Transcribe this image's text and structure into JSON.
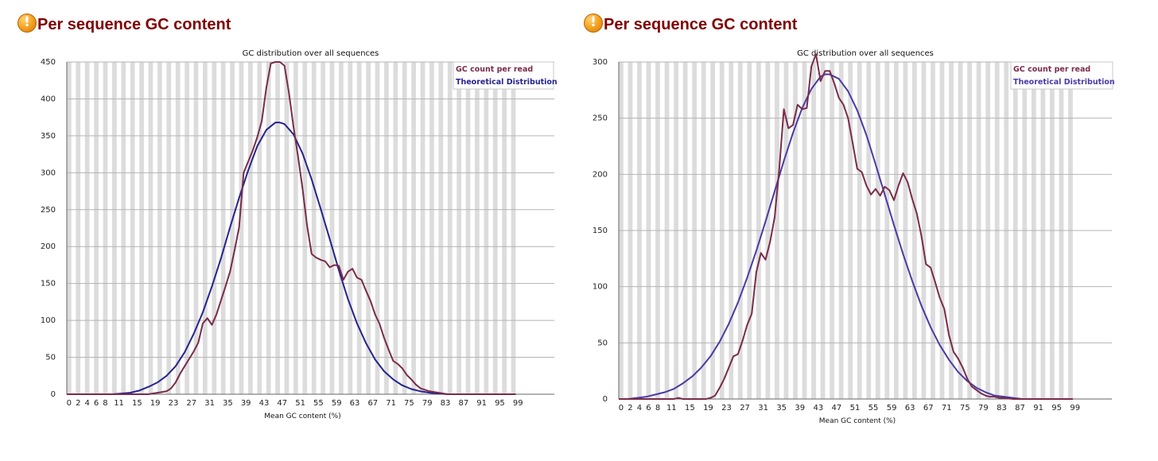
{
  "panels": [
    {
      "heading": "Per sequence GC content",
      "icon": "warning-icon",
      "chart_data": {
        "type": "line",
        "title": "GC distribution over all sequences",
        "xlabel": "Mean GC content (%)",
        "ylabel": "",
        "xlim": [
          0,
          100
        ],
        "ylim": [
          0,
          450
        ],
        "yticks": [
          0,
          50,
          100,
          150,
          200,
          250,
          300,
          350,
          400,
          450
        ],
        "xticks": [
          0,
          2,
          4,
          6,
          8,
          11,
          15,
          19,
          23,
          27,
          31,
          35,
          39,
          43,
          47,
          51,
          55,
          59,
          63,
          67,
          71,
          75,
          79,
          83,
          87,
          91,
          95,
          99
        ],
        "legend_position": "top-right",
        "grid": true,
        "series": [
          {
            "name": "GC count per read",
            "color": "#7a2b4a",
            "x": [
              0,
              2,
              4,
              6,
              8,
              10,
              12,
              14,
              16,
              18,
              20,
              21,
              22,
              23,
              24,
              25,
              26,
              27,
              28,
              29,
              30,
              31,
              32,
              33,
              34,
              35,
              36,
              37,
              38,
              39,
              40,
              41,
              42,
              43,
              44,
              45,
              46,
              47,
              48,
              49,
              50,
              51,
              52,
              53,
              54,
              55,
              56,
              57,
              58,
              59,
              60,
              61,
              62,
              63,
              64,
              65,
              66,
              67,
              68,
              69,
              70,
              71,
              72,
              73,
              74,
              75,
              76,
              77,
              78,
              79,
              80,
              82,
              84,
              86,
              88,
              90,
              92,
              95,
              99
            ],
            "y": [
              0,
              0,
              0,
              0,
              0,
              0,
              0,
              0,
              0,
              0,
              2,
              3,
              4,
              8,
              16,
              28,
              38,
              48,
              58,
              70,
              96,
              103,
              94,
              108,
              127,
              146,
              166,
              195,
              226,
              300,
              315,
              330,
              348,
              370,
              415,
              448,
              450,
              450,
              445,
              408,
              362,
              322,
              278,
              228,
              190,
              185,
              182,
              180,
              172,
              175,
              174,
              155,
              166,
              170,
              158,
              155,
              140,
              126,
              108,
              95,
              76,
              60,
              45,
              41,
              35,
              26,
              20,
              13,
              8,
              6,
              4,
              2,
              0,
              0,
              0,
              0,
              0,
              0,
              0
            ]
          },
          {
            "name": "Theoretical Distribution",
            "color": "#26238f",
            "x": [
              0,
              2,
              4,
              6,
              8,
              10,
              12,
              14,
              16,
              18,
              20,
              22,
              24,
              26,
              28,
              30,
              32,
              34,
              36,
              38,
              40,
              42,
              44,
              46,
              47,
              48,
              50,
              52,
              54,
              56,
              58,
              60,
              62,
              64,
              66,
              68,
              70,
              72,
              74,
              76,
              78,
              80,
              82,
              84,
              86,
              88,
              90,
              92,
              95,
              99
            ],
            "y": [
              0,
              0,
              0,
              0,
              0,
              0,
              1,
              2,
              5,
              10,
              16,
              25,
              38,
              57,
              82,
              111,
              146,
              184,
              226,
              266,
              303,
              336,
              358,
              368,
              368,
              366,
              352,
              326,
              291,
              251,
              210,
              168,
              129,
              96,
              69,
              47,
              31,
              20,
              12,
              7,
              4,
              2,
              1,
              0,
              0,
              0,
              0,
              0,
              0,
              0
            ]
          }
        ]
      }
    },
    {
      "heading": "Per sequence GC content",
      "icon": "warning-icon",
      "chart_data": {
        "type": "line",
        "title": "GC distribution over all sequences",
        "xlabel": "Mean GC content (%)",
        "ylabel": "",
        "xlim": [
          0,
          100
        ],
        "ylim": [
          0,
          300
        ],
        "yticks": [
          0,
          50,
          100,
          150,
          200,
          250,
          300
        ],
        "xticks": [
          0,
          2,
          4,
          6,
          8,
          11,
          15,
          19,
          23,
          27,
          31,
          35,
          39,
          43,
          47,
          51,
          55,
          59,
          63,
          67,
          71,
          75,
          79,
          83,
          87,
          91,
          95,
          99
        ],
        "legend_position": "top-right",
        "grid": true,
        "series": [
          {
            "name": "GC count per read",
            "color": "#7a2b4a",
            "x": [
              0,
              2,
              4,
              6,
              8,
              10,
              12,
              13,
              14,
              15,
              16,
              17,
              18,
              19,
              20,
              21,
              22,
              23,
              24,
              25,
              26,
              27,
              28,
              29,
              30,
              31,
              32,
              33,
              34,
              35,
              36,
              37,
              38,
              39,
              40,
              41,
              42,
              43,
              44,
              45,
              46,
              47,
              48,
              49,
              50,
              51,
              52,
              53,
              54,
              55,
              56,
              57,
              58,
              59,
              60,
              61,
              62,
              63,
              64,
              65,
              66,
              67,
              68,
              69,
              70,
              71,
              72,
              73,
              74,
              75,
              76,
              77,
              78,
              79,
              80,
              81,
              82,
              83,
              84,
              86,
              88,
              90,
              92,
              95,
              99
            ],
            "y": [
              0,
              0,
              0,
              0,
              0,
              0,
              0,
              1,
              0,
              0,
              0,
              0,
              0,
              0,
              1,
              3,
              10,
              18,
              28,
              38,
              40,
              52,
              66,
              76,
              113,
              130,
              124,
              140,
              162,
              205,
              258,
              241,
              244,
              262,
              258,
              259,
              296,
              307,
              283,
              292,
              292,
              281,
              268,
              262,
              250,
              228,
              205,
              202,
              190,
              182,
              187,
              181,
              189,
              186,
              177,
              190,
              201,
              193,
              178,
              165,
              145,
              120,
              117,
              104,
              90,
              80,
              57,
              42,
              36,
              28,
              18,
              11,
              8,
              5,
              3,
              2,
              2,
              1,
              1,
              0,
              0,
              0,
              0,
              0,
              0
            ]
          },
          {
            "name": "Theoretical Distribution",
            "color": "#4a3aa6",
            "x": [
              0,
              2,
              4,
              6,
              8,
              10,
              12,
              14,
              16,
              18,
              20,
              22,
              24,
              26,
              28,
              30,
              32,
              34,
              36,
              38,
              40,
              42,
              44,
              45,
              46,
              48,
              50,
              52,
              54,
              56,
              58,
              60,
              62,
              64,
              66,
              68,
              70,
              72,
              74,
              76,
              78,
              80,
              82,
              84,
              86,
              88,
              90,
              92,
              95,
              99
            ],
            "y": [
              0,
              0,
              1,
              2,
              4,
              6,
              9,
              14,
              20,
              28,
              38,
              51,
              67,
              86,
              108,
              132,
              158,
              185,
              212,
              237,
              259,
              276,
              287,
              289,
              289,
              285,
              274,
              257,
              235,
              209,
              182,
              155,
              129,
              105,
              83,
              64,
              48,
              35,
              24,
              16,
              10,
              6,
              3,
              2,
              1,
              0,
              0,
              0,
              0,
              0
            ]
          }
        ]
      }
    }
  ]
}
